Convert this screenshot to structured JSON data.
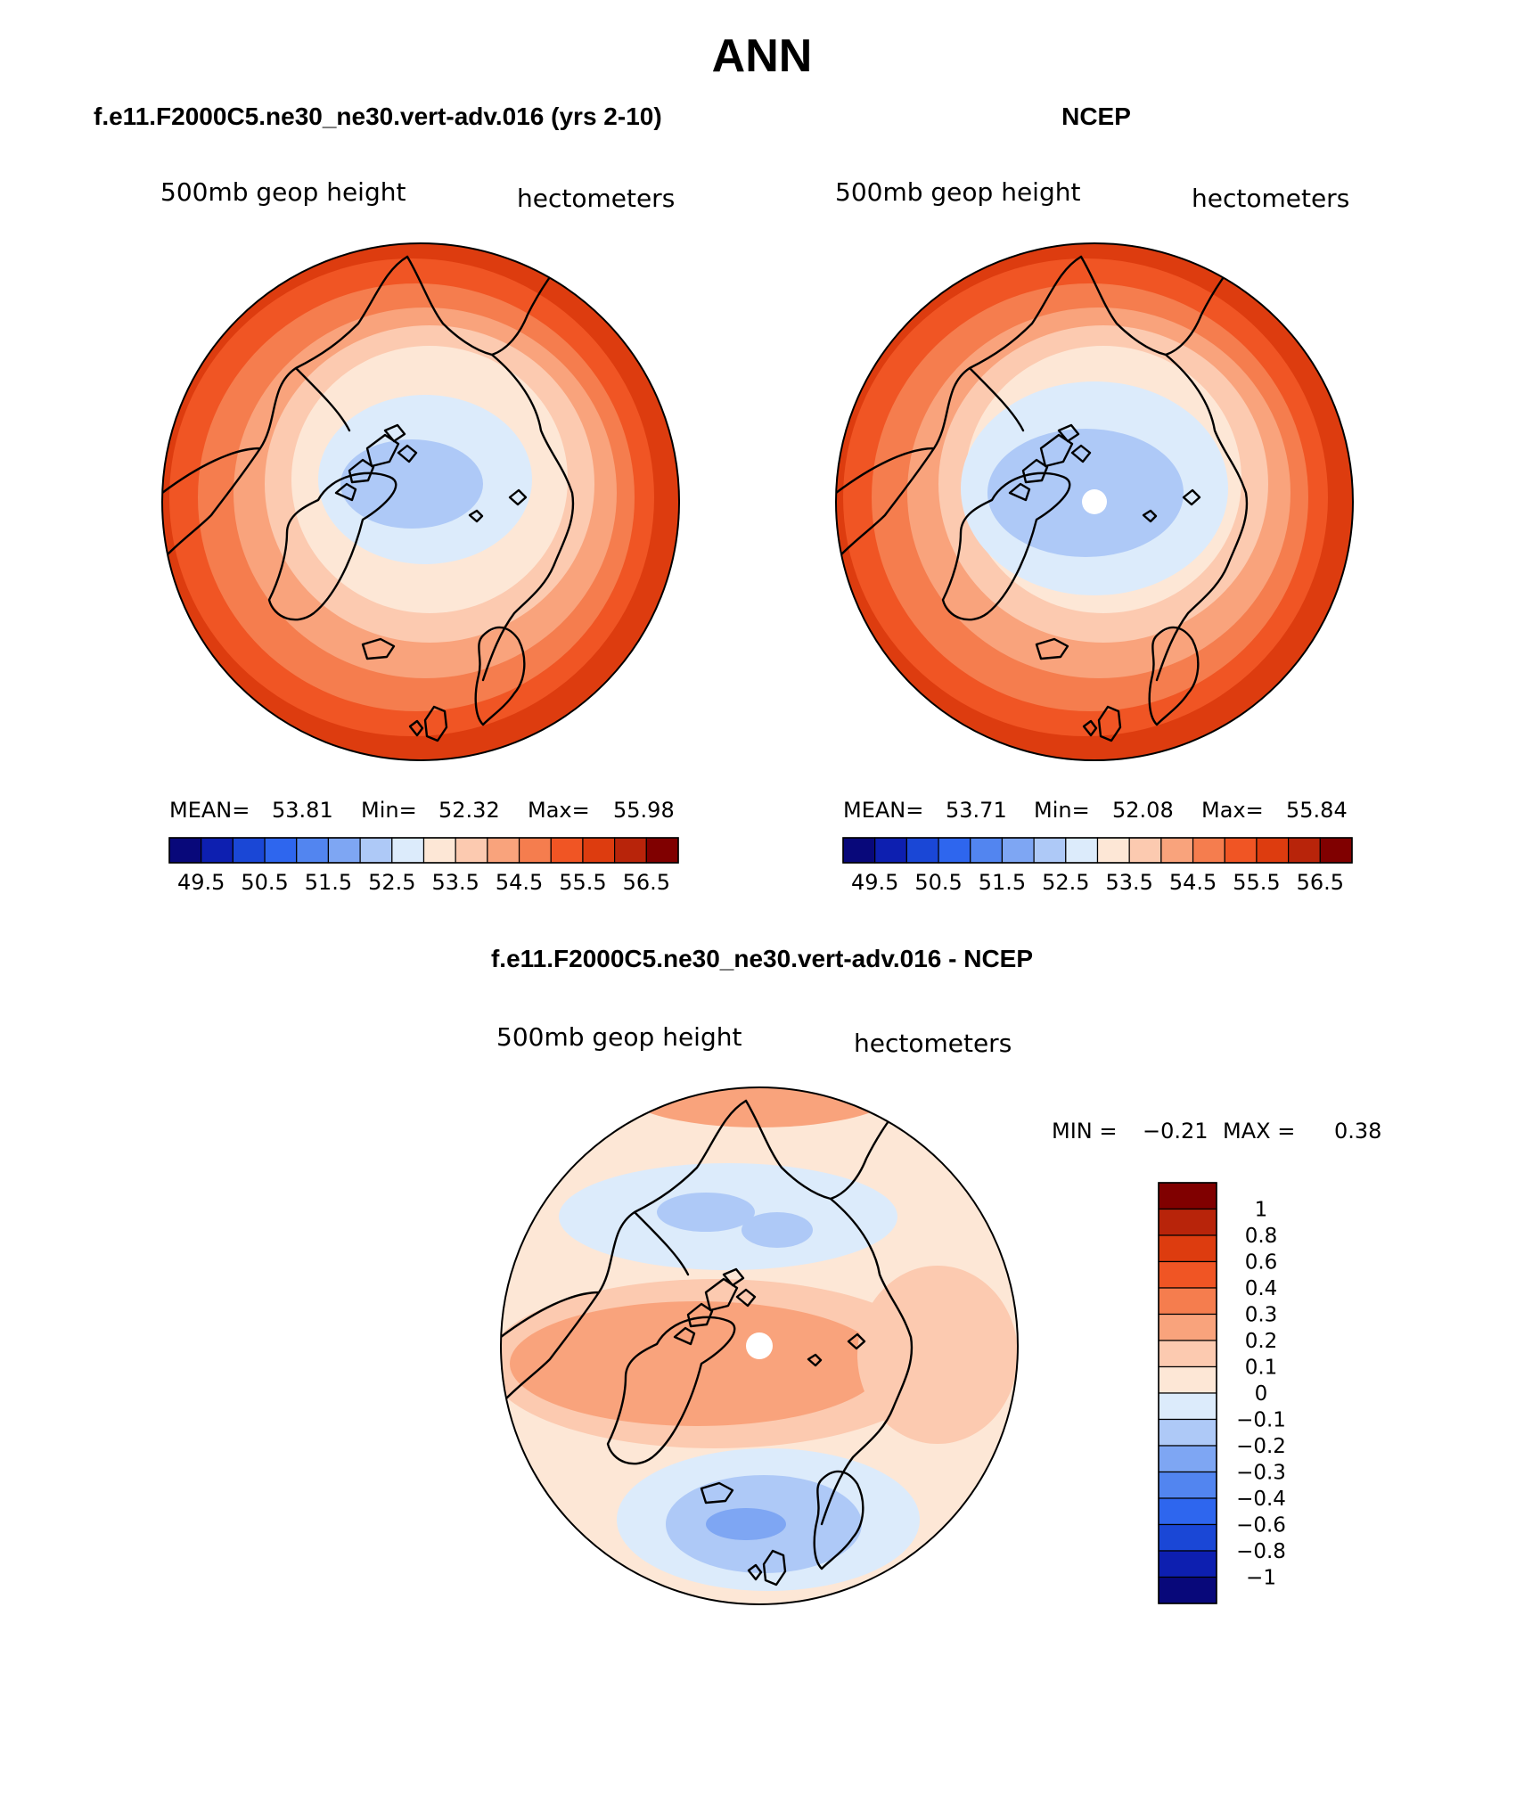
{
  "title": "ANN",
  "panels": [
    {
      "id": "model",
      "title": "f.e11.F2000C5.ne30_ne30.vert-adv.016 (yrs 2-10)",
      "field": "500mb geop height",
      "units": "hectometers",
      "stats": {
        "mean_label": "MEAN=",
        "mean": "53.81",
        "min_label": "Min=",
        "min": "52.32",
        "max_label": "Max=",
        "max": "55.98"
      },
      "colorbar_labels": [
        "49.5",
        "50.5",
        "51.5",
        "52.5",
        "53.5",
        "54.5",
        "55.5",
        "56.5"
      ]
    },
    {
      "id": "obs",
      "title": "NCEP",
      "field": "500mb geop height",
      "units": "hectometers",
      "stats": {
        "mean_label": "MEAN=",
        "mean": "53.71",
        "min_label": "Min=",
        "min": "52.08",
        "max_label": "Max=",
        "max": "55.84"
      },
      "colorbar_labels": [
        "49.5",
        "50.5",
        "51.5",
        "52.5",
        "53.5",
        "54.5",
        "55.5",
        "56.5"
      ]
    },
    {
      "id": "diff",
      "title": "f.e11.F2000C5.ne30_ne30.vert-adv.016 - NCEP",
      "field": "500mb geop height",
      "units": "hectometers",
      "stats": {
        "min_label": "MIN =",
        "min": "−0.21",
        "max_label": "MAX =",
        "max": "0.38"
      },
      "colorbar_labels": [
        "1",
        "0.8",
        "0.6",
        "0.4",
        "0.3",
        "0.2",
        "0.1",
        "0",
        "−0.1",
        "−0.2",
        "−0.3",
        "−0.4",
        "−0.6",
        "−0.8",
        "−1"
      ]
    }
  ],
  "colors": {
    "abs_scale": [
      "#08087a",
      "#0d1fb0",
      "#1a47d6",
      "#2e66ee",
      "#5285f0",
      "#7ea6f3",
      "#aec9f7",
      "#dcebfb",
      "#fde7d6",
      "#fccab0",
      "#f9a37c",
      "#f57d4e",
      "#f05524",
      "#dd3c0f",
      "#b8240a",
      "#800000"
    ],
    "diff_scale": [
      "#08087a",
      "#0d1fb0",
      "#1a47d6",
      "#2e66ee",
      "#5285f0",
      "#7ea6f3",
      "#aec9f7",
      "#dcebfb",
      "#fde7d6",
      "#fccab0",
      "#f9a37c",
      "#f57d4e",
      "#f05524",
      "#dd3c0f",
      "#b8240a",
      "#800000"
    ]
  },
  "chart_data": [
    {
      "type": "heatmap",
      "projection": "north polar stereographic",
      "title": "f.e11.F2000C5.ne30_ne30.vert-adv.016 (yrs 2-10)",
      "variable": "500mb geop height",
      "units": "hectometers",
      "levels": [
        49.5,
        50.0,
        50.5,
        51.0,
        51.5,
        52.0,
        52.5,
        53.0,
        53.5,
        54.0,
        54.5,
        55.0,
        55.5,
        56.0,
        56.5
      ],
      "mean": 53.81,
      "min": 52.32,
      "max": 55.98
    },
    {
      "type": "heatmap",
      "projection": "north polar stereographic",
      "title": "NCEP",
      "variable": "500mb geop height",
      "units": "hectometers",
      "levels": [
        49.5,
        50.0,
        50.5,
        51.0,
        51.5,
        52.0,
        52.5,
        53.0,
        53.5,
        54.0,
        54.5,
        55.0,
        55.5,
        56.0,
        56.5
      ],
      "mean": 53.71,
      "min": 52.08,
      "max": 55.84
    },
    {
      "type": "heatmap",
      "projection": "north polar stereographic",
      "title": "f.e11.F2000C5.ne30_ne30.vert-adv.016 - NCEP",
      "variable": "500mb geop height",
      "units": "hectometers",
      "levels": [
        -1,
        -0.8,
        -0.6,
        -0.4,
        -0.3,
        -0.2,
        -0.1,
        0,
        0.1,
        0.2,
        0.3,
        0.4,
        0.6,
        0.8,
        1
      ],
      "min": -0.21,
      "max": 0.38
    }
  ]
}
